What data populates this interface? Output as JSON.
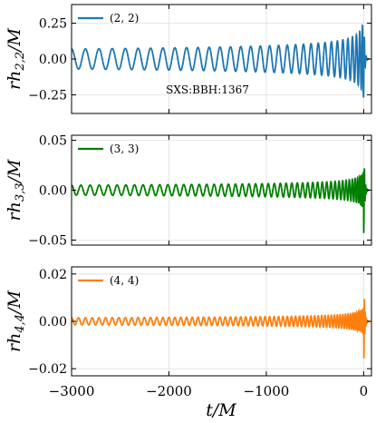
{
  "figure": {
    "xlabel": "t/M",
    "xlim": [
      -3000,
      80
    ],
    "xticks": [
      -3000,
      -2000,
      -1000,
      0
    ],
    "xtick_labels": [
      "−3000",
      "−2000",
      "−1000",
      "0"
    ]
  },
  "chart_data": [
    {
      "type": "line",
      "ylabel_main": "rh",
      "ylabel_sub": "2,2",
      "ylabel_tail": "/M",
      "ylim": [
        -0.38,
        0.38
      ],
      "yticks": [
        -0.25,
        0,
        0.25
      ],
      "ytick_labels": [
        "−0.25",
        "0.00",
        "0.25"
      ],
      "grid": true,
      "legend_position": "top-left",
      "annotation": "SXS:BBH:1367",
      "series": [
        {
          "name": "(2, 2)",
          "color": "#1f77b4",
          "amplitude_start": 0.07,
          "amplitude_peak": 0.33,
          "cycles": 31
        }
      ]
    },
    {
      "type": "line",
      "ylabel_main": "rh",
      "ylabel_sub": "3,3",
      "ylabel_tail": "/M",
      "ylim": [
        -0.055,
        0.055
      ],
      "yticks": [
        -0.05,
        0,
        0.05
      ],
      "ytick_labels": [
        "−0.05",
        "0.00",
        "0.05"
      ],
      "grid": true,
      "legend_position": "top-left",
      "series": [
        {
          "name": "(3, 3)",
          "color": "#008000",
          "amplitude_start": 0.005,
          "amplitude_peak": 0.05,
          "cycles": 46
        }
      ]
    },
    {
      "type": "line",
      "ylabel_main": "rh",
      "ylabel_sub": "4,4",
      "ylabel_tail": "/M",
      "ylim": [
        -0.023,
        0.023
      ],
      "yticks": [
        -0.02,
        0,
        0.02
      ],
      "ytick_labels": [
        "−0.02",
        "0.00",
        "0.02"
      ],
      "grid": true,
      "legend_position": "top-left",
      "series": [
        {
          "name": "(4, 4)",
          "color": "#ff7f0e",
          "amplitude_start": 0.0015,
          "amplitude_peak": 0.021,
          "cycles": 62
        }
      ]
    }
  ]
}
